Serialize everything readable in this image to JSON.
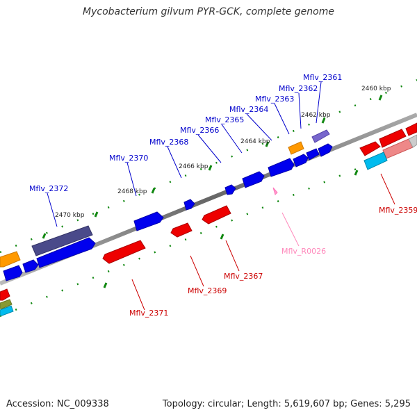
{
  "title": "Mycobacterium gilvum PYR-GCK, complete genome",
  "accession": "Accession: NC_009338",
  "footer": "Topology: circular; Length: 5,619,607 bp; Genes: 5,295",
  "colors": {
    "forward_gene": "#0000ee",
    "reverse_gene": "#ee0000",
    "ncrna": "#ff99cc",
    "dark_gene": "#4a4a8a",
    "orange_gene": "#ff9900",
    "purple_gene": "#7766cc",
    "cyan_gene": "#00bbee",
    "forward_label": "#0000cc",
    "reverse_label": "#cc0000",
    "ncrna_label": "#ff88bb",
    "tick": "#118811",
    "backbone": "#777777"
  },
  "scale_labels": [
    "2460 kbp",
    "2462 kbp",
    "2464 kbp",
    "2466 kbp",
    "2468 kbp",
    "2470 kbp"
  ],
  "forward_labels": [
    "Mflv_2361",
    "Mflv_2362",
    "Mflv_2363",
    "Mflv_2364",
    "Mflv_2365",
    "Mflv_2366",
    "Mflv_2368",
    "Mflv_2370",
    "Mflv_2372"
  ],
  "reverse_labels": [
    "Mflv_2359",
    "Mflv_R0026",
    "Mflv_2367",
    "Mflv_2369",
    "Mflv_2371"
  ]
}
